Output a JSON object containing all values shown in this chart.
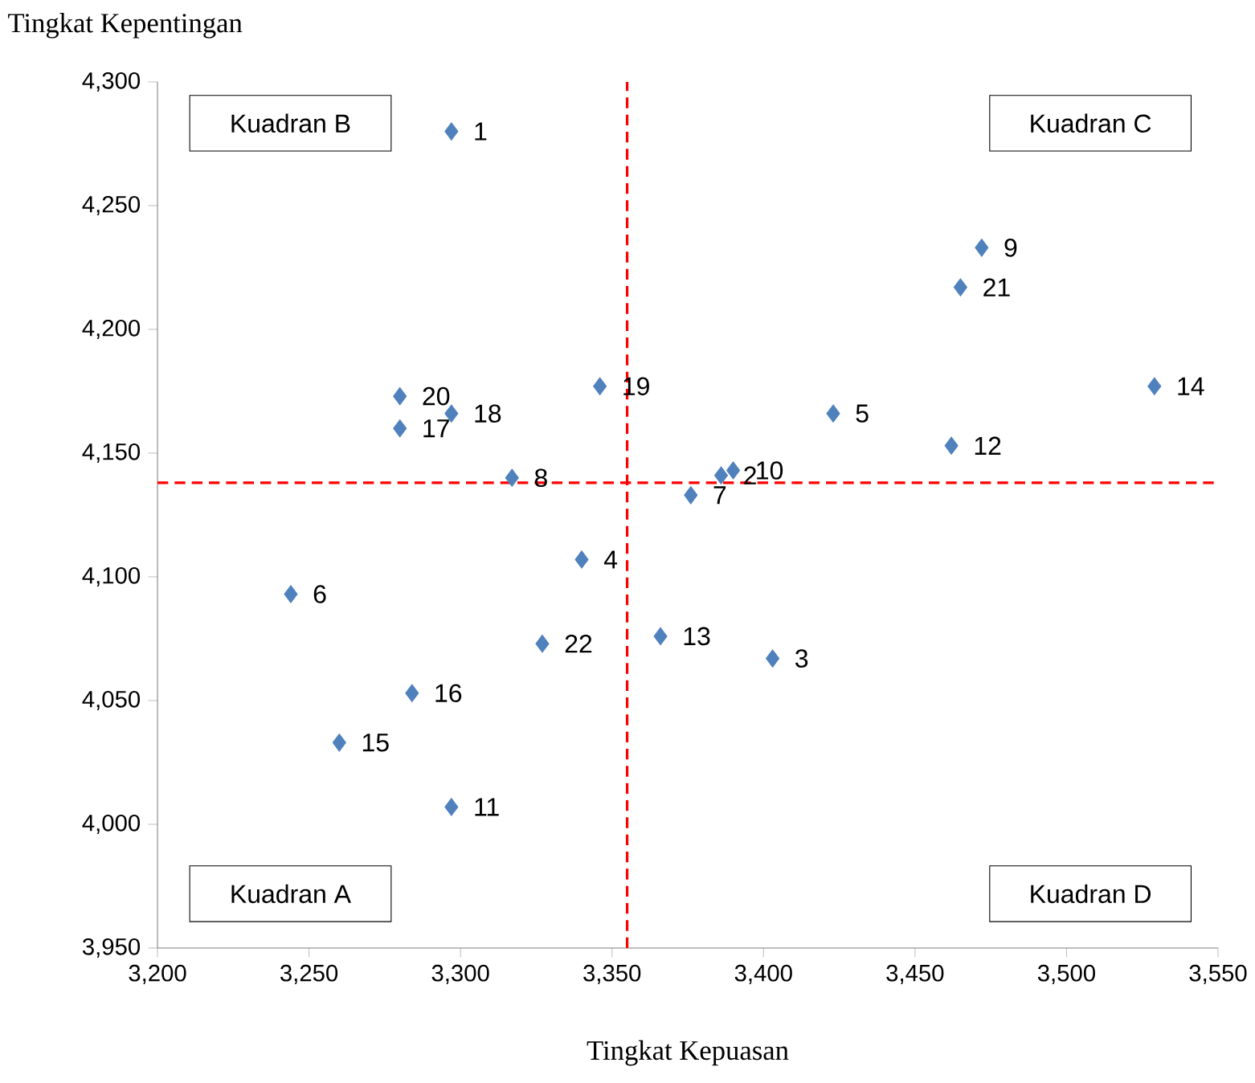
{
  "chart_data": {
    "type": "scatter",
    "xlabel": "Tingkat Kepuasan",
    "ylabel": "Tingkat Kepentingan",
    "marker": "diamond",
    "grid": false,
    "xlim": [
      3200,
      3550
    ],
    "xticks": [
      {
        "value": 3200,
        "label": "3,200"
      },
      {
        "value": 3250,
        "label": "3,250"
      },
      {
        "value": 3300,
        "label": "3,300"
      },
      {
        "value": 3350,
        "label": "3,350"
      },
      {
        "value": 3400,
        "label": "3,400"
      },
      {
        "value": 3450,
        "label": "3,450"
      },
      {
        "value": 3500,
        "label": "3,500"
      },
      {
        "value": 3550,
        "label": "3,550"
      }
    ],
    "ylim": [
      3950,
      4300
    ],
    "yticks": [
      {
        "value": 3950,
        "label": "3,950"
      },
      {
        "value": 4000,
        "label": "4,000"
      },
      {
        "value": 4050,
        "label": "4,050"
      },
      {
        "value": 4100,
        "label": "4,100"
      },
      {
        "value": 4150,
        "label": "4,150"
      },
      {
        "value": 4200,
        "label": "4,200"
      },
      {
        "value": 4250,
        "label": "4,250"
      },
      {
        "value": 4300,
        "label": "4,300"
      }
    ],
    "series": [
      {
        "color": "#4f81bd",
        "x": [
          3297,
          3386,
          3403,
          3340,
          3423,
          3244,
          3376,
          3317,
          3472,
          3390,
          3297,
          3462,
          3366,
          3529,
          3260,
          3284,
          3280,
          3297,
          3346,
          3280,
          3465,
          3327
        ],
        "values": [
          4280,
          4141,
          4067,
          4107,
          4166,
          4093,
          4133,
          4140,
          4233,
          4143,
          4007,
          4153,
          4076,
          4177,
          4033,
          4053,
          4160,
          4166,
          4177,
          4173,
          4217,
          4073
        ]
      }
    ],
    "ref_lines": [
      {
        "axis": "x",
        "value": 3355,
        "color": "#ff0000",
        "line_style": "dashed"
      },
      {
        "axis": "y",
        "value": 4138,
        "color": "#ff0000",
        "line_style": "dashed"
      }
    ],
    "annotations": [
      "Kuadran B",
      "Kuadran C",
      "Kuadran A",
      "Kuadran D",
      {
        "text": "1",
        "x": 3297,
        "y": 4280
      },
      {
        "text": "2",
        "x": 3386,
        "y": 4141
      },
      {
        "text": "3",
        "x": 3403,
        "y": 4067
      },
      {
        "text": "4",
        "x": 3340,
        "y": 4107
      },
      {
        "text": "5",
        "x": 3423,
        "y": 4166
      },
      {
        "text": "6",
        "x": 3244,
        "y": 4093
      },
      {
        "text": "7",
        "x": 3376,
        "y": 4133
      },
      {
        "text": "8",
        "x": 3317,
        "y": 4140
      },
      {
        "text": "9",
        "x": 3472,
        "y": 4233
      },
      {
        "text": "10",
        "x": 3390,
        "y": 4143
      },
      {
        "text": "11",
        "x": 3297,
        "y": 4007
      },
      {
        "text": "12",
        "x": 3462,
        "y": 4153
      },
      {
        "text": "13",
        "x": 3366,
        "y": 4076
      },
      {
        "text": "14",
        "x": 3529,
        "y": 4177
      },
      {
        "text": "15",
        "x": 3260,
        "y": 4033
      },
      {
        "text": "16",
        "x": 3284,
        "y": 4053
      },
      {
        "text": "17",
        "x": 3280,
        "y": 4160
      },
      {
        "text": "18",
        "x": 3297,
        "y": 4166
      },
      {
        "text": "19",
        "x": 3346,
        "y": 4177
      },
      {
        "text": "20",
        "x": 3280,
        "y": 4173
      },
      {
        "text": "21",
        "x": 3465,
        "y": 4217
      },
      {
        "text": "22",
        "x": 3327,
        "y": 4073
      }
    ]
  }
}
